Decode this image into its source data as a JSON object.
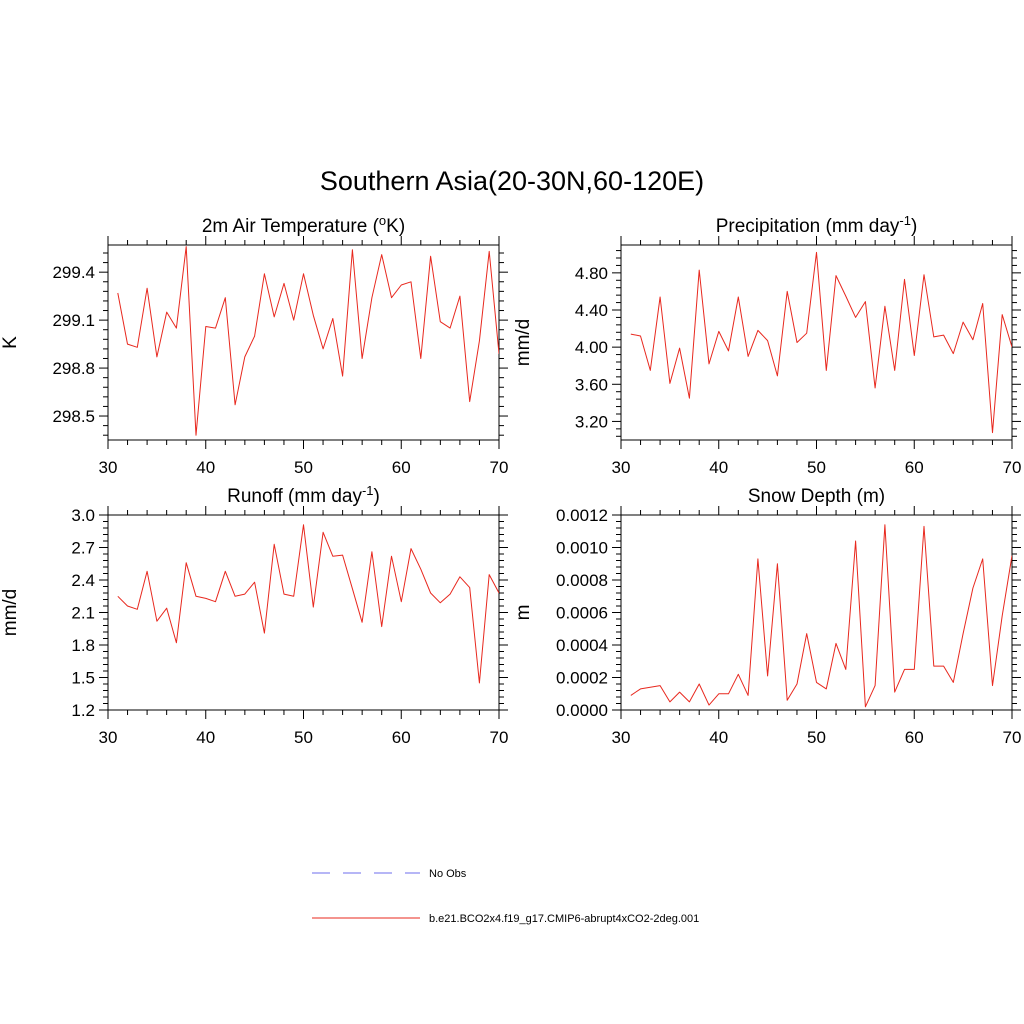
{
  "figure": {
    "title": "Southern Asia(20-30N,60-120E)",
    "colors": {
      "model": "#e8281e",
      "obs": "#8a8af0"
    }
  },
  "legend": {
    "items": [
      {
        "label": "No Obs",
        "style": "dashed",
        "color": "#8a8af0"
      },
      {
        "label": "b.e21.BCO2x4.f19_g17.CMIP6-abrupt4xCO2-2deg.001",
        "style": "solid",
        "color": "#e8281e"
      }
    ]
  },
  "chart_data": [
    {
      "type": "line",
      "title": "2m Air Temperature (",
      "title_sup": "o",
      "title_post": "K)",
      "ylabel": "K",
      "xlim": [
        30,
        70
      ],
      "ylim": [
        298.35,
        299.57
      ],
      "xticks": [
        30,
        40,
        50,
        60,
        70
      ],
      "yticks": [
        298.5,
        298.8,
        299.1,
        299.4
      ],
      "ytick_labels": [
        "298.5",
        "298.8",
        "299.1",
        "299.4"
      ],
      "x": [
        31,
        32,
        33,
        34,
        35,
        36,
        37,
        38,
        39,
        40,
        41,
        42,
        43,
        44,
        45,
        46,
        47,
        48,
        49,
        50,
        51,
        52,
        53,
        54,
        55,
        56,
        57,
        58,
        59,
        60,
        61,
        62,
        63,
        64,
        65,
        66,
        67,
        68,
        69,
        70
      ],
      "series": [
        {
          "values": [
            299.27,
            298.95,
            298.93,
            299.3,
            298.87,
            299.15,
            299.05,
            299.56,
            298.38,
            299.06,
            299.05,
            299.24,
            298.57,
            298.87,
            299.0,
            299.39,
            299.12,
            299.33,
            299.1,
            299.39,
            299.13,
            298.92,
            299.11,
            298.75,
            299.54,
            298.86,
            299.24,
            299.51,
            299.24,
            299.32,
            299.34,
            298.86,
            299.5,
            299.09,
            299.05,
            299.25,
            298.59,
            298.97,
            299.53,
            298.89
          ]
        }
      ]
    },
    {
      "type": "line",
      "title": "Precipitation (mm day",
      "title_sup": "-1",
      "title_post": ")",
      "ylabel": "mm/d",
      "xlim": [
        30,
        70
      ],
      "ylim": [
        3.0,
        5.1
      ],
      "xticks": [
        30,
        40,
        50,
        60,
        70
      ],
      "yticks": [
        3.2,
        3.6,
        4.0,
        4.4,
        4.8
      ],
      "ytick_labels": [
        "3.20",
        "3.60",
        "4.00",
        "4.40",
        "4.80"
      ],
      "x": [
        31,
        32,
        33,
        34,
        35,
        36,
        37,
        38,
        39,
        40,
        41,
        42,
        43,
        44,
        45,
        46,
        47,
        48,
        49,
        50,
        51,
        52,
        53,
        54,
        55,
        56,
        57,
        58,
        59,
        60,
        61,
        62,
        63,
        64,
        65,
        66,
        67,
        68,
        69,
        70
      ],
      "series": [
        {
          "values": [
            4.14,
            4.12,
            3.75,
            4.54,
            3.61,
            3.99,
            3.45,
            4.83,
            3.82,
            4.17,
            3.96,
            4.54,
            3.9,
            4.18,
            4.07,
            3.69,
            4.6,
            4.05,
            4.15,
            5.02,
            3.75,
            4.77,
            4.55,
            4.32,
            4.49,
            3.56,
            4.44,
            3.75,
            4.73,
            3.91,
            4.78,
            4.11,
            4.13,
            3.93,
            4.27,
            4.08,
            4.47,
            3.08,
            4.35,
            4.0
          ]
        }
      ]
    },
    {
      "type": "line",
      "title": "Runoff (mm day",
      "title_sup": "-1",
      "title_post": ")",
      "ylabel": "mm/d",
      "xlim": [
        30,
        70
      ],
      "ylim": [
        1.2,
        3.0
      ],
      "xticks": [
        30,
        40,
        50,
        60,
        70
      ],
      "yticks": [
        1.2,
        1.5,
        1.8,
        2.1,
        2.4,
        2.7,
        3.0
      ],
      "ytick_labels": [
        "1.2",
        "1.5",
        "1.8",
        "2.1",
        "2.4",
        "2.7",
        "3.0"
      ],
      "x": [
        31,
        32,
        33,
        34,
        35,
        36,
        37,
        38,
        39,
        40,
        41,
        42,
        43,
        44,
        45,
        46,
        47,
        48,
        49,
        50,
        51,
        52,
        53,
        54,
        55,
        56,
        57,
        58,
        59,
        60,
        61,
        62,
        63,
        64,
        65,
        66,
        67,
        68,
        69,
        70
      ],
      "series": [
        {
          "values": [
            2.25,
            2.16,
            2.13,
            2.48,
            2.02,
            2.14,
            1.82,
            2.56,
            2.25,
            2.23,
            2.2,
            2.48,
            2.25,
            2.27,
            2.38,
            1.91,
            2.73,
            2.27,
            2.25,
            2.91,
            2.15,
            2.84,
            2.62,
            2.63,
            2.32,
            2.01,
            2.66,
            1.97,
            2.62,
            2.2,
            2.69,
            2.5,
            2.28,
            2.19,
            2.27,
            2.43,
            2.33,
            1.45,
            2.45,
            2.28
          ]
        }
      ]
    },
    {
      "type": "line",
      "title": "Snow Depth (m)",
      "title_sup": "",
      "title_post": "",
      "ylabel": "m",
      "xlim": [
        30,
        70
      ],
      "ylim": [
        0.0,
        0.0012
      ],
      "xticks": [
        30,
        40,
        50,
        60,
        70
      ],
      "yticks": [
        0.0,
        0.0002,
        0.0004,
        0.0006,
        0.0008,
        0.001,
        0.0012
      ],
      "ytick_labels": [
        "0.0000",
        "0.0002",
        "0.0004",
        "0.0006",
        "0.0008",
        "0.0010",
        "0.0012"
      ],
      "x": [
        31,
        32,
        33,
        34,
        35,
        36,
        37,
        38,
        39,
        40,
        41,
        42,
        43,
        44,
        45,
        46,
        47,
        48,
        49,
        50,
        51,
        52,
        53,
        54,
        55,
        56,
        57,
        58,
        59,
        60,
        61,
        62,
        63,
        64,
        65,
        66,
        67,
        68,
        69,
        70
      ],
      "series": [
        {
          "values": [
            9e-05,
            0.00013,
            0.00014,
            0.00015,
            5e-05,
            0.00011,
            5e-05,
            0.00016,
            3e-05,
            0.0001,
            0.0001,
            0.00022,
            9e-05,
            0.00093,
            0.00021,
            0.0009,
            6e-05,
            0.00016,
            0.00047,
            0.00017,
            0.00013,
            0.00041,
            0.00025,
            0.00104,
            2e-05,
            0.00015,
            0.00114,
            0.00011,
            0.00025,
            0.00025,
            0.00113,
            0.00027,
            0.00027,
            0.00017,
            0.00047,
            0.00075,
            0.00093,
            0.00015,
            0.00058,
            0.00095
          ]
        }
      ]
    }
  ]
}
